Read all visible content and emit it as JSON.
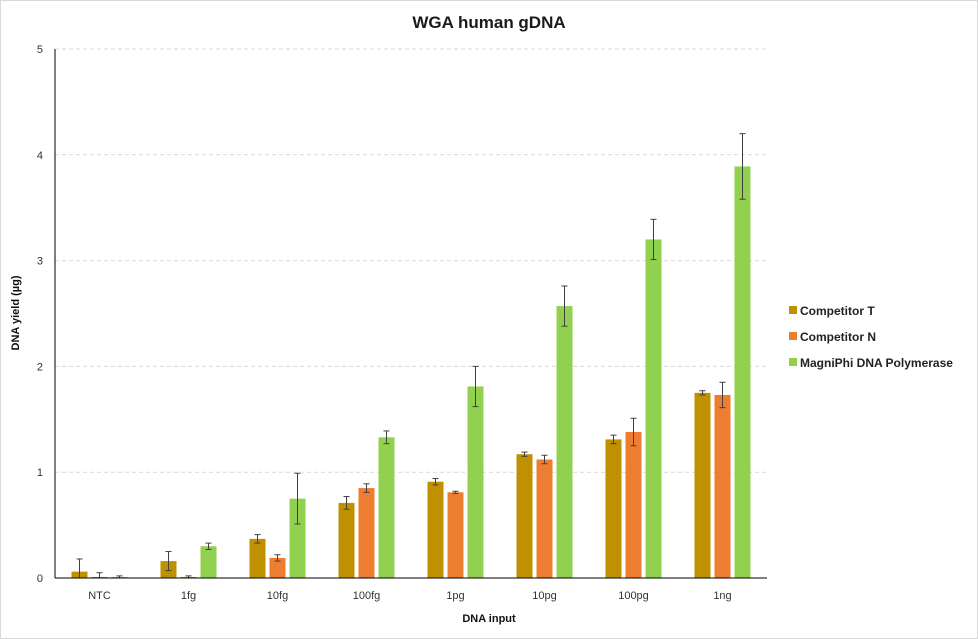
{
  "chart_data": {
    "type": "bar",
    "title": "WGA human gDNA",
    "xlabel": "DNA input",
    "ylabel": "DNA yield (µg)",
    "ylim": [
      0,
      5
    ],
    "yticks": [
      "0",
      "1",
      "2",
      "3",
      "4",
      "5"
    ],
    "grid": "horizontal dashed",
    "legend_position": "right",
    "categories": [
      "NTC",
      "1fg",
      "10fg",
      "100fg",
      "1pg",
      "10pg",
      "100pg",
      "1ng"
    ],
    "series": [
      {
        "name": "Competitor T",
        "color": "#bf9000",
        "values": [
          0.06,
          0.16,
          0.37,
          0.71,
          0.91,
          1.17,
          1.31,
          1.75
        ],
        "errors": [
          0.12,
          0.09,
          0.04,
          0.06,
          0.03,
          0.02,
          0.04,
          0.02
        ]
      },
      {
        "name": "Competitor N",
        "color": "#ed7d31",
        "values": [
          0.01,
          0.01,
          0.19,
          0.85,
          0.81,
          1.12,
          1.38,
          1.73
        ],
        "errors": [
          0.04,
          0.01,
          0.03,
          0.04,
          0.01,
          0.04,
          0.13,
          0.12
        ]
      },
      {
        "name": "MagniPhi DNA Polymerase",
        "color": "#92d050",
        "values": [
          0.01,
          0.3,
          0.75,
          1.33,
          1.81,
          2.57,
          3.2,
          3.89
        ],
        "errors": [
          0.01,
          0.03,
          0.24,
          0.06,
          0.19,
          0.19,
          0.19,
          0.31
        ]
      }
    ]
  }
}
